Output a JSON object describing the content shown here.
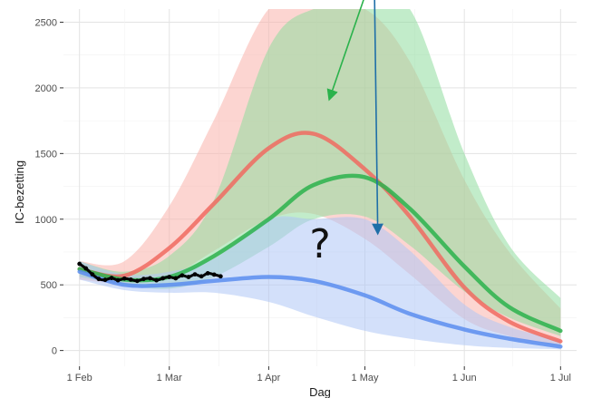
{
  "chart_data": {
    "type": "line",
    "title": "",
    "xlabel": "Dag",
    "ylabel": "IC-bezetting",
    "x_domain": [
      "2021-01-27",
      "2021-07-06"
    ],
    "ylim": [
      -120,
      2600
    ],
    "grid": true,
    "background": "#ffffff",
    "x_ticks": [
      {
        "date": "2021-02-01",
        "label": "1 Feb"
      },
      {
        "date": "2021-03-01",
        "label": "1 Mar"
      },
      {
        "date": "2021-04-01",
        "label": "1 Apr"
      },
      {
        "date": "2021-05-01",
        "label": "1 May"
      },
      {
        "date": "2021-06-01",
        "label": "1 Jun"
      },
      {
        "date": "2021-07-01",
        "label": "1 Jul"
      }
    ],
    "y_ticks": [
      0,
      500,
      1000,
      1500,
      2000,
      2500
    ],
    "series": [
      {
        "color": "#f06a60",
        "band_color": "#f9b2ac",
        "x": [
          "2021-02-01",
          "2021-02-15",
          "2021-03-01",
          "2021-03-15",
          "2021-04-01",
          "2021-04-15",
          "2021-05-01",
          "2021-05-15",
          "2021-06-01",
          "2021-06-15",
          "2021-07-01"
        ],
        "y": [
          620,
          570,
          780,
          1120,
          1540,
          1650,
          1380,
          1020,
          480,
          220,
          70
        ],
        "lower": [
          540,
          510,
          560,
          760,
          1000,
          1040,
          850,
          580,
          240,
          110,
          30
        ],
        "upper": [
          680,
          680,
          1100,
          1760,
          2600,
          2600,
          2600,
          2200,
          1300,
          750,
          320
        ]
      },
      {
        "color": "#2bb24c",
        "band_color": "#8fdc9e",
        "x": [
          "2021-02-01",
          "2021-02-15",
          "2021-03-01",
          "2021-03-15",
          "2021-04-01",
          "2021-04-15",
          "2021-05-01",
          "2021-05-15",
          "2021-06-01",
          "2021-06-15",
          "2021-07-01"
        ],
        "y": [
          620,
          540,
          560,
          720,
          1000,
          1260,
          1320,
          1080,
          640,
          330,
          150
        ],
        "lower": [
          560,
          500,
          470,
          560,
          790,
          1000,
          1020,
          800,
          450,
          250,
          110
        ],
        "upper": [
          680,
          600,
          720,
          1150,
          2300,
          2600,
          2600,
          2600,
          1500,
          800,
          400
        ]
      },
      {
        "color": "#5b8def",
        "band_color": "#aec6f5",
        "x": [
          "2021-02-01",
          "2021-02-15",
          "2021-03-01",
          "2021-03-15",
          "2021-04-01",
          "2021-04-15",
          "2021-05-01",
          "2021-05-15",
          "2021-06-01",
          "2021-06-15",
          "2021-07-01"
        ],
        "y": [
          600,
          500,
          500,
          530,
          560,
          530,
          420,
          280,
          160,
          90,
          30
        ],
        "lower": [
          540,
          460,
          440,
          440,
          370,
          260,
          150,
          90,
          40,
          20,
          10
        ],
        "upper": [
          680,
          580,
          600,
          700,
          1000,
          1000,
          1000,
          760,
          350,
          180,
          80
        ]
      }
    ],
    "observed": {
      "color": "#000000",
      "x": [
        "2021-02-01",
        "2021-02-03",
        "2021-02-05",
        "2021-02-07",
        "2021-02-09",
        "2021-02-11",
        "2021-02-13",
        "2021-02-15",
        "2021-02-17",
        "2021-02-19",
        "2021-02-21",
        "2021-02-23",
        "2021-02-25",
        "2021-02-27",
        "2021-03-01",
        "2021-03-03",
        "2021-03-05",
        "2021-03-07",
        "2021-03-09",
        "2021-03-11",
        "2021-03-13",
        "2021-03-15",
        "2021-03-17"
      ],
      "y": [
        660,
        625,
        580,
        545,
        538,
        552,
        535,
        548,
        540,
        530,
        545,
        550,
        535,
        550,
        560,
        550,
        572,
        560,
        580,
        565,
        588,
        578,
        565
      ]
    },
    "annotations": [
      {
        "type": "text",
        "text": "?",
        "x": "2021-04-17",
        "y": 820
      },
      {
        "type": "arrow",
        "color": "#2bb24c",
        "from": [
          "2021-05-01",
          2700
        ],
        "to": [
          "2021-04-20",
          1920
        ]
      },
      {
        "type": "arrow",
        "color": "#1f6fa8",
        "from": [
          "2021-05-04",
          2700
        ],
        "to": [
          "2021-05-05",
          900
        ]
      }
    ]
  }
}
